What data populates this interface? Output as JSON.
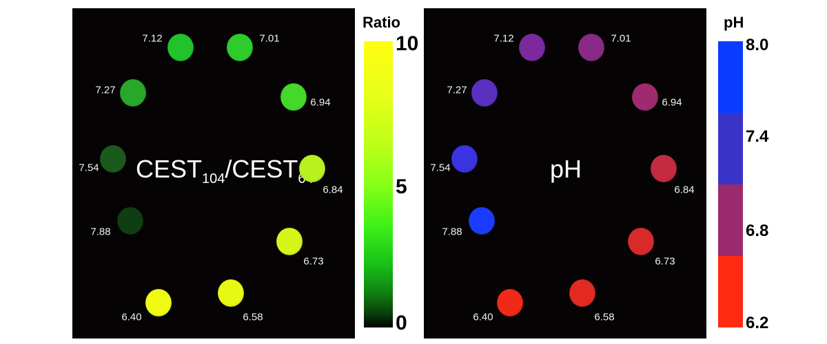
{
  "left_panel": {
    "title_main": "CEST",
    "title_sub1": "104",
    "title_mid": "/CEST",
    "title_sub2": "64",
    "spots": [
      {
        "label": "7.12",
        "color": "#22c22a"
      },
      {
        "label": "7.01",
        "color": "#2ecc2a"
      },
      {
        "label": "6.94",
        "color": "#44d82a"
      },
      {
        "label": "6.84",
        "color": "#b8f020"
      },
      {
        "label": "6.73",
        "color": "#d4f518"
      },
      {
        "label": "6.58",
        "color": "#e6f814"
      },
      {
        "label": "6.40",
        "color": "#f0fb14"
      },
      {
        "label": "7.88",
        "color": "#0f3d14"
      },
      {
        "label": "7.54",
        "color": "#1a5a1c"
      },
      {
        "label": "7.27",
        "color": "#28a82a"
      }
    ]
  },
  "right_panel": {
    "title": "pH",
    "spots": [
      {
        "label": "7.12",
        "color": "#7a2a9c"
      },
      {
        "label": "7.01",
        "color": "#8a2a86"
      },
      {
        "label": "6.94",
        "color": "#a02a70"
      },
      {
        "label": "6.84",
        "color": "#c42a40"
      },
      {
        "label": "6.73",
        "color": "#d82a2a"
      },
      {
        "label": "6.58",
        "color": "#e22a22"
      },
      {
        "label": "6.40",
        "color": "#f02a18"
      },
      {
        "label": "7.88",
        "color": "#1a3cff"
      },
      {
        "label": "7.54",
        "color": "#3a34e0"
      },
      {
        "label": "7.27",
        "color": "#5a30c0"
      }
    ]
  },
  "ratio_bar": {
    "title": "Ratio",
    "ticks": [
      "10",
      "5",
      "0"
    ]
  },
  "ph_bar": {
    "title": "pH",
    "ticks": [
      "8.0",
      "7.4",
      "6.8",
      "6.2"
    ],
    "segments": [
      "#0a3cff",
      "#3a34c8",
      "#9a2a6e",
      "#ff2a12"
    ]
  }
}
